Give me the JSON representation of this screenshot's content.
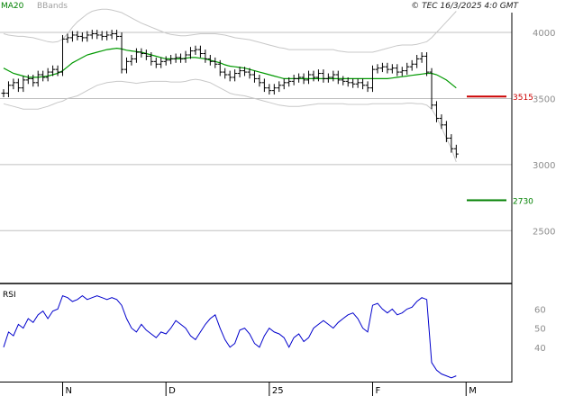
{
  "header": {
    "legend_ma": "MA20",
    "legend_bb": "BBands",
    "timestamp": "© TEC 16/3/2025 4:0 GMT"
  },
  "colors": {
    "price": "#000000",
    "ma": "#009900",
    "bands": "#c8c8c8",
    "rsi": "#0000cc",
    "resistance": "#cc0000",
    "support": "#008000",
    "grid": "#c0c0c0"
  },
  "chart_data": [
    {
      "type": "line",
      "title": "",
      "y_ticks": [
        "4000",
        "3500",
        "3000",
        "2500"
      ],
      "y_tick_values": [
        4000,
        3500,
        3000,
        2500
      ],
      "ylim": [
        2100,
        4150
      ],
      "x_labels": [
        "N",
        "D",
        "25",
        "F",
        "M"
      ],
      "x_label_index": [
        12,
        33,
        54,
        75,
        94
      ],
      "price_close": [
        3540,
        3600,
        3620,
        3580,
        3640,
        3650,
        3620,
        3680,
        3660,
        3700,
        3720,
        3700,
        3950,
        3960,
        3980,
        3970,
        3960,
        3980,
        3990,
        3980,
        3970,
        3980,
        3990,
        3970,
        3720,
        3780,
        3800,
        3850,
        3840,
        3820,
        3780,
        3760,
        3780,
        3790,
        3800,
        3810,
        3800,
        3830,
        3860,
        3870,
        3840,
        3800,
        3780,
        3760,
        3700,
        3680,
        3660,
        3690,
        3710,
        3700,
        3680,
        3650,
        3620,
        3580,
        3560,
        3580,
        3600,
        3620,
        3630,
        3650,
        3660,
        3640,
        3680,
        3660,
        3690,
        3650,
        3660,
        3680,
        3640,
        3630,
        3620,
        3610,
        3620,
        3600,
        3580,
        3720,
        3730,
        3740,
        3720,
        3730,
        3700,
        3710,
        3740,
        3760,
        3800,
        3820,
        3700,
        3450,
        3350,
        3300,
        3200,
        3120,
        3080
      ],
      "ma20": [
        3730,
        3710,
        3690,
        3680,
        3670,
        3660,
        3660,
        3660,
        3665,
        3670,
        3680,
        3690,
        3710,
        3740,
        3770,
        3790,
        3810,
        3830,
        3840,
        3850,
        3860,
        3870,
        3875,
        3880,
        3875,
        3865,
        3860,
        3855,
        3850,
        3840,
        3830,
        3820,
        3810,
        3800,
        3800,
        3800,
        3800,
        3805,
        3810,
        3810,
        3805,
        3800,
        3790,
        3780,
        3770,
        3755,
        3745,
        3740,
        3735,
        3730,
        3720,
        3710,
        3700,
        3690,
        3680,
        3670,
        3660,
        3650,
        3650,
        3650,
        3650,
        3650,
        3650,
        3650,
        3650,
        3650,
        3650,
        3650,
        3650,
        3650,
        3650,
        3650,
        3650,
        3650,
        3650,
        3650,
        3650,
        3650,
        3650,
        3655,
        3660,
        3665,
        3670,
        3675,
        3680,
        3685,
        3690,
        3690,
        3680,
        3660,
        3640,
        3610,
        3580
      ],
      "bb_upper": [
        3990,
        3980,
        3975,
        3970,
        3970,
        3965,
        3960,
        3950,
        3940,
        3930,
        3925,
        3930,
        3950,
        3990,
        4040,
        4080,
        4110,
        4140,
        4160,
        4170,
        4175,
        4175,
        4170,
        4160,
        4150,
        4130,
        4110,
        4090,
        4070,
        4055,
        4040,
        4025,
        4010,
        3995,
        3985,
        3980,
        3975,
        3975,
        3980,
        3985,
        3990,
        3990,
        3990,
        3990,
        3985,
        3980,
        3970,
        3960,
        3955,
        3950,
        3945,
        3935,
        3925,
        3915,
        3905,
        3895,
        3885,
        3880,
        3870,
        3870,
        3870,
        3870,
        3870,
        3870,
        3870,
        3870,
        3870,
        3870,
        3860,
        3855,
        3850,
        3850,
        3850,
        3850,
        3850,
        3850,
        3860,
        3870,
        3880,
        3890,
        3900,
        3905,
        3905,
        3905,
        3910,
        3920,
        3930,
        3960,
        4000,
        4040,
        4080,
        4120,
        4160
      ],
      "bb_lower": [
        3460,
        3450,
        3440,
        3430,
        3420,
        3420,
        3420,
        3420,
        3430,
        3440,
        3455,
        3470,
        3480,
        3500,
        3510,
        3520,
        3540,
        3560,
        3580,
        3600,
        3610,
        3620,
        3625,
        3630,
        3630,
        3625,
        3620,
        3615,
        3620,
        3625,
        3630,
        3630,
        3630,
        3630,
        3625,
        3625,
        3625,
        3630,
        3640,
        3645,
        3640,
        3630,
        3620,
        3600,
        3580,
        3560,
        3540,
        3530,
        3525,
        3520,
        3510,
        3500,
        3490,
        3480,
        3470,
        3460,
        3450,
        3445,
        3440,
        3440,
        3440,
        3445,
        3450,
        3455,
        3460,
        3460,
        3460,
        3460,
        3460,
        3460,
        3455,
        3455,
        3455,
        3455,
        3455,
        3460,
        3460,
        3460,
        3460,
        3460,
        3460,
        3460,
        3465,
        3465,
        3460,
        3460,
        3450,
        3420,
        3360,
        3280,
        3200,
        3120,
        3020
      ],
      "levels": [
        {
          "label": "3515",
          "value": 3515,
          "color": "#cc0000"
        },
        {
          "label": "2730",
          "value": 2730,
          "color": "#008000"
        }
      ]
    },
    {
      "type": "line",
      "title": "RSI",
      "y_ticks": [
        "60",
        "50",
        "40"
      ],
      "y_tick_values": [
        60,
        50,
        40
      ],
      "ylim": [
        22,
        72
      ],
      "rsi": [
        40,
        48,
        46,
        52,
        50,
        55,
        53,
        57,
        59,
        55,
        59,
        60,
        67,
        66,
        64,
        65,
        67,
        65,
        66,
        67,
        66,
        65,
        66,
        65,
        62,
        55,
        50,
        48,
        52,
        49,
        47,
        45,
        48,
        47,
        50,
        54,
        52,
        50,
        46,
        44,
        48,
        52,
        55,
        57,
        50,
        44,
        40,
        42,
        49,
        50,
        47,
        42,
        40,
        46,
        50,
        48,
        47,
        45,
        40,
        45,
        47,
        43,
        45,
        50,
        52,
        54,
        52,
        50,
        53,
        55,
        57,
        58,
        55,
        50,
        48,
        62,
        63,
        60,
        58,
        60,
        57,
        58,
        60,
        61,
        64,
        66,
        65,
        32,
        28,
        26,
        25,
        24,
        25
      ]
    }
  ]
}
